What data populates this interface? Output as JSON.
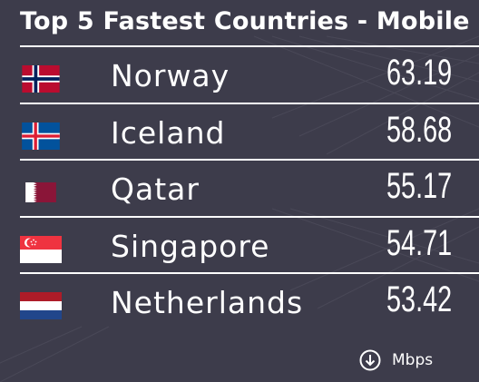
{
  "chart_data": {
    "type": "table",
    "title": "Top 5 Fastest Countries - Mobile",
    "unit": "Mbps",
    "unit_icon": "download-arrow-icon",
    "rows": [
      {
        "country": "Norway",
        "value": "63.19",
        "flag": "norway-flag"
      },
      {
        "country": "Iceland",
        "value": "58.68",
        "flag": "iceland-flag"
      },
      {
        "country": "Qatar",
        "value": "55.17",
        "flag": "qatar-flag"
      },
      {
        "country": "Singapore",
        "value": "54.71",
        "flag": "singapore-flag"
      },
      {
        "country": "Netherlands",
        "value": "53.42",
        "flag": "netherlands-flag"
      }
    ]
  },
  "colors": {
    "background": "#3d3c4b",
    "text": "#ffffff",
    "divider": "#ffffff"
  }
}
